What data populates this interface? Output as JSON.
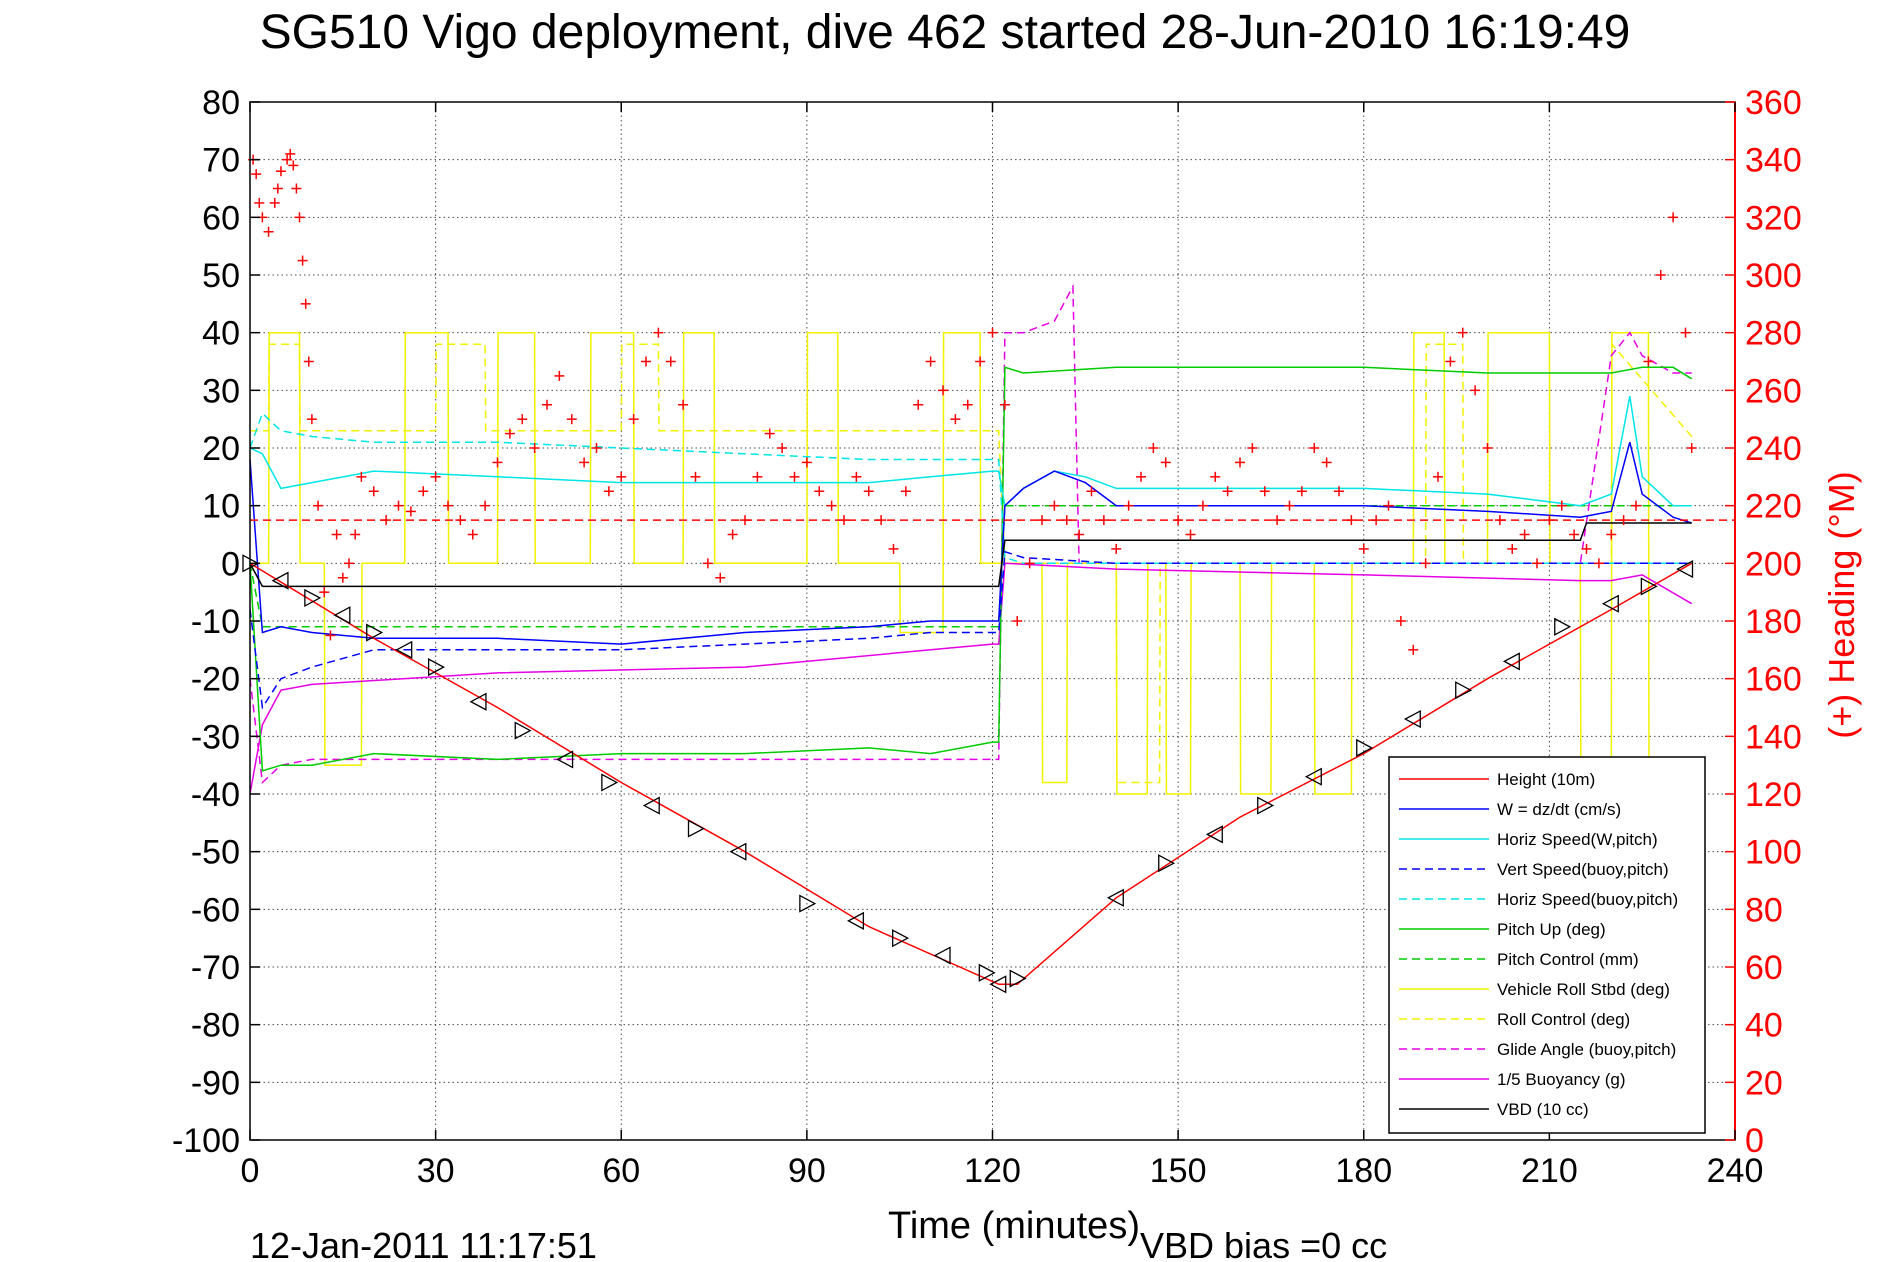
{
  "chart_data": {
    "type": "line",
    "title": "SG510 Vigo deployment, dive 462 started 28-Jun-2010 16:19:49",
    "xlabel": "Time (minutes)",
    "ylabel": "",
    "y2label": "(+) Heading (°M)",
    "xlim": [
      0,
      240
    ],
    "ylim": [
      -100,
      80
    ],
    "y2lim": [
      0,
      360
    ],
    "xticks": [
      0,
      30,
      60,
      90,
      120,
      150,
      180,
      210,
      240
    ],
    "yticks": [
      -100,
      -90,
      -80,
      -70,
      -60,
      -50,
      -40,
      -30,
      -20,
      -10,
      0,
      10,
      20,
      30,
      40,
      50,
      60,
      70,
      80
    ],
    "y2ticks": [
      0,
      20,
      40,
      60,
      80,
      100,
      120,
      140,
      160,
      180,
      200,
      220,
      240,
      260,
      280,
      300,
      320,
      340,
      360
    ],
    "grid": true,
    "legend_position": "lower-right",
    "footer_left": "12-Jan-2011 11:17:51",
    "footer_right": "VBD bias =0 cc",
    "colors": {
      "axis": "#000000",
      "heading_axis": "#ff0000",
      "heading_marker": "#ff0000"
    },
    "legend": [
      {
        "label": "Height (10m)",
        "color": "#ff0000",
        "dash": "solid"
      },
      {
        "label": "W = dz/dt (cm/s)",
        "color": "#0000ff",
        "dash": "solid"
      },
      {
        "label": "Horiz Speed(W,pitch)",
        "color": "#00e5e5",
        "dash": "solid"
      },
      {
        "label": "Vert Speed(buoy,pitch)",
        "color": "#0000ff",
        "dash": "dashed"
      },
      {
        "label": "Horiz Speed(buoy,pitch)",
        "color": "#00e5e5",
        "dash": "dashed"
      },
      {
        "label": "Pitch Up (deg)",
        "color": "#00cc00",
        "dash": "solid"
      },
      {
        "label": "Pitch Control (mm)",
        "color": "#00cc00",
        "dash": "dashed"
      },
      {
        "label": "Vehicle Roll Stbd (deg)",
        "color": "#f2f200",
        "dash": "solid"
      },
      {
        "label": "Roll Control (deg)",
        "color": "#f2f200",
        "dash": "dashed"
      },
      {
        "label": "Glide Angle (buoy,pitch)",
        "color": "#e600e6",
        "dash": "dashed"
      },
      {
        "label": "1/5 Buoyancy (g)",
        "color": "#e600e6",
        "dash": "solid"
      },
      {
        "label": "VBD (10 cc)",
        "color": "#000000",
        "dash": "solid"
      }
    ],
    "series": [
      {
        "label": "Height (10m)",
        "x": [
          0,
          20,
          40,
          60,
          80,
          100,
          121,
          124,
          140,
          160,
          180,
          200,
          220,
          233
        ],
        "y": [
          0,
          -13,
          -25,
          -38,
          -50,
          -63,
          -73,
          -73,
          -58,
          -44,
          -33,
          -20,
          -8,
          0
        ]
      },
      {
        "label": "W = dz/dt (cm/s)",
        "x": [
          0,
          2,
          5,
          10,
          20,
          40,
          60,
          80,
          100,
          110,
          120,
          121,
          122,
          125,
          130,
          135,
          140,
          160,
          180,
          200,
          215,
          220,
          223,
          225,
          230,
          233
        ],
        "y": [
          18,
          -12,
          -11,
          -12,
          -13,
          -13,
          -14,
          -12,
          -11,
          -10,
          -10,
          -10,
          10,
          13,
          16,
          14,
          10,
          10,
          10,
          9,
          8,
          9,
          21,
          12,
          8,
          7
        ]
      },
      {
        "label": "Horiz Speed(W,pitch)",
        "x": [
          0,
          2,
          5,
          10,
          20,
          40,
          60,
          80,
          100,
          110,
          120,
          121,
          122,
          125,
          130,
          135,
          140,
          160,
          180,
          200,
          215,
          220,
          223,
          225,
          230,
          233
        ],
        "y": [
          20,
          19,
          13,
          14,
          16,
          15,
          14,
          14,
          14,
          15,
          16,
          16,
          10,
          13,
          16,
          15,
          13,
          13,
          13,
          12,
          10,
          12,
          29,
          15,
          10,
          10
        ]
      },
      {
        "label": "Vert Speed(buoy,pitch)",
        "x": [
          0,
          2,
          5,
          10,
          20,
          40,
          60,
          80,
          100,
          110,
          120,
          121,
          122,
          125,
          140,
          180,
          215,
          220,
          233
        ],
        "y": [
          -8,
          -25,
          -20,
          -18,
          -15,
          -15,
          -15,
          -14,
          -13,
          -12,
          -12,
          -12,
          2,
          1,
          0,
          0,
          0,
          0,
          0
        ]
      },
      {
        "label": "Horiz Speed(buoy,pitch)",
        "x": [
          0,
          2,
          5,
          10,
          20,
          40,
          60,
          80,
          100,
          110,
          120,
          121,
          122,
          125,
          140,
          180,
          215,
          220,
          233
        ],
        "y": [
          20,
          26,
          23,
          22,
          21,
          21,
          20,
          19,
          18,
          18,
          18,
          18,
          1,
          0,
          0,
          0,
          0,
          0,
          0
        ]
      },
      {
        "label": "Pitch Up (deg)",
        "x": [
          0,
          2,
          5,
          10,
          20,
          40,
          60,
          80,
          100,
          110,
          120,
          121,
          122,
          125,
          140,
          160,
          180,
          200,
          215,
          220,
          225,
          230,
          233
        ],
        "y": [
          0,
          -36,
          -35,
          -35,
          -33,
          -34,
          -33,
          -33,
          -32,
          -33,
          -31,
          -31,
          34,
          33,
          34,
          34,
          34,
          33,
          33,
          33,
          34,
          34,
          32
        ]
      },
      {
        "label": "Pitch Control (mm)",
        "x": [
          0,
          2,
          5,
          10,
          60,
          120,
          121,
          122,
          125,
          180,
          220,
          233
        ],
        "y": [
          0,
          -11,
          -11,
          -11,
          -11,
          -11,
          -11,
          10,
          10,
          10,
          10,
          10
        ]
      },
      {
        "label": "Vehicle Roll Stbd (deg)",
        "x": [
          0,
          3,
          3.1,
          8,
          8.1,
          12,
          12.1,
          18,
          18.1,
          25,
          25.1,
          32,
          32.1,
          40,
          40.1,
          46,
          46.1,
          55,
          55.1,
          62,
          62.1,
          70,
          70.1,
          75,
          75.1,
          90,
          90.1,
          95,
          95.1,
          105,
          105.1,
          112,
          112.1,
          118,
          118.1,
          121,
          122,
          128,
          128.1,
          132,
          132.1,
          140,
          140.1,
          145,
          145.1,
          148,
          148.1,
          152,
          152.1,
          160,
          160.1,
          165,
          165.1,
          172,
          172.1,
          178,
          178.1,
          188,
          188.1,
          193,
          193.1,
          200,
          200.1,
          210,
          210.1,
          215,
          215.1,
          220,
          220.1,
          226,
          226.1,
          233
        ],
        "y": [
          0,
          0,
          40,
          40,
          0,
          0,
          -35,
          -35,
          0,
          0,
          40,
          40,
          0,
          0,
          40,
          40,
          0,
          0,
          40,
          40,
          0,
          0,
          40,
          40,
          0,
          0,
          40,
          40,
          0,
          0,
          -12,
          -12,
          40,
          40,
          0,
          0,
          0,
          0,
          -38,
          -38,
          0,
          0,
          -40,
          -40,
          0,
          0,
          -40,
          -40,
          0,
          0,
          -40,
          -40,
          0,
          0,
          -40,
          -40,
          0,
          0,
          40,
          40,
          0,
          0,
          40,
          40,
          0,
          0,
          -40,
          -40,
          40,
          40,
          -40,
          -40
        ]
      },
      {
        "label": "Roll Control (deg)",
        "x": [
          0,
          3,
          3.1,
          8,
          8.1,
          30,
          30.1,
          38,
          38.1,
          60,
          60.1,
          66,
          66.1,
          90,
          90.1,
          121,
          122,
          140,
          140.1,
          147,
          147.1,
          190,
          190.1,
          196,
          196.1,
          220,
          220.1,
          233
        ],
        "y": [
          23,
          23,
          38,
          38,
          23,
          23,
          38,
          38,
          23,
          23,
          38,
          38,
          23,
          23,
          23,
          23,
          0,
          0,
          -38,
          -38,
          0,
          0,
          38,
          38,
          0,
          0,
          38,
          22
        ]
      },
      {
        "label": "Glide Angle (buoy,pitch)",
        "x": [
          0,
          2,
          5,
          10,
          60,
          120,
          121,
          122,
          125,
          130,
          133,
          134,
          135,
          180,
          215,
          220,
          223,
          225,
          230,
          233
        ],
        "y": [
          -20,
          -38,
          -35,
          -34,
          -34,
          -34,
          -34,
          40,
          40,
          42,
          48,
          0,
          0,
          0,
          0,
          36,
          40,
          36,
          33,
          33
        ]
      },
      {
        "label": "1/5 Buoyancy (g)",
        "x": [
          0,
          2,
          5,
          10,
          40,
          80,
          110,
          120,
          121,
          122,
          140,
          180,
          215,
          220,
          225,
          233
        ],
        "y": [
          -40,
          -28,
          -22,
          -21,
          -19,
          -18,
          -15,
          -14,
          -14,
          0,
          -1,
          -2,
          -3,
          -3,
          -2,
          -7
        ]
      },
      {
        "label": "VBD (10 cc)",
        "x": [
          0,
          2,
          120,
          121,
          122,
          215,
          216,
          233
        ],
        "y": [
          0,
          -4,
          -4,
          -4,
          4,
          4,
          7,
          7
        ]
      }
    ],
    "heading_series": {
      "label": "(+) Heading",
      "axis": "right",
      "marker": "+",
      "x": [
        0.5,
        1,
        1.5,
        2,
        3,
        4,
        4.5,
        5,
        6,
        6.5,
        7,
        7.5,
        8,
        8.5,
        9,
        9.5,
        10,
        11,
        12,
        13,
        14,
        15,
        16,
        17,
        18,
        20,
        22,
        24,
        26,
        28,
        30,
        32,
        34,
        36,
        38,
        40,
        42,
        44,
        46,
        48,
        50,
        52,
        54,
        56,
        58,
        60,
        62,
        64,
        66,
        68,
        70,
        72,
        74,
        76,
        78,
        80,
        82,
        84,
        86,
        88,
        90,
        92,
        94,
        96,
        98,
        100,
        102,
        104,
        106,
        108,
        110,
        112,
        114,
        116,
        118,
        120,
        122,
        124,
        126,
        128,
        130,
        132,
        134,
        136,
        138,
        140,
        142,
        144,
        146,
        148,
        150,
        152,
        154,
        156,
        158,
        160,
        162,
        164,
        166,
        168,
        170,
        172,
        174,
        176,
        178,
        180,
        182,
        184,
        186,
        188,
        190,
        192,
        194,
        196,
        198,
        200,
        202,
        204,
        206,
        208,
        210,
        212,
        214,
        216,
        218,
        220,
        222,
        224,
        226,
        228,
        230,
        232,
        233
      ],
      "y": [
        340,
        335,
        325,
        320,
        315,
        325,
        330,
        336,
        340,
        342,
        338,
        330,
        320,
        305,
        290,
        270,
        250,
        220,
        190,
        175,
        210,
        195,
        200,
        210,
        230,
        225,
        215,
        220,
        218,
        225,
        230,
        220,
        215,
        210,
        220,
        235,
        245,
        250,
        240,
        255,
        265,
        250,
        235,
        240,
        225,
        230,
        250,
        270,
        280,
        270,
        255,
        230,
        200,
        195,
        210,
        215,
        230,
        245,
        240,
        230,
        235,
        225,
        220,
        215,
        230,
        225,
        215,
        205,
        225,
        255,
        270,
        260,
        250,
        255,
        270,
        280,
        255,
        180,
        200,
        215,
        220,
        215,
        210,
        225,
        215,
        205,
        220,
        230,
        240,
        235,
        215,
        210,
        220,
        230,
        225,
        235,
        240,
        225,
        215,
        220,
        225,
        240,
        235,
        225,
        215,
        205,
        215,
        220,
        180,
        170,
        200,
        230,
        270,
        280,
        260,
        240,
        215,
        205,
        210,
        200,
        215,
        220,
        210,
        205,
        200,
        210,
        215,
        220,
        270,
        300,
        320,
        280,
        240
      ]
    },
    "markers_triangles": {
      "x": [
        0,
        5,
        10,
        15,
        20,
        25,
        30,
        37,
        44,
        51,
        58,
        65,
        72,
        79,
        90,
        98,
        105,
        112,
        119,
        121,
        124,
        140,
        148,
        156,
        164,
        172,
        180,
        188,
        196,
        204,
        212,
        220,
        226,
        232
      ],
      "y": [
        0,
        -3,
        -6,
        -9,
        -12,
        -15,
        -18,
        -24,
        -29,
        -34,
        -38,
        -42,
        -46,
        -50,
        -59,
        -62,
        -65,
        -68,
        -71,
        -73,
        -72,
        -58,
        -52,
        -47,
        -42,
        -37,
        -32,
        -27,
        -22,
        -17,
        -11,
        -7,
        -4,
        -1
      ]
    }
  }
}
